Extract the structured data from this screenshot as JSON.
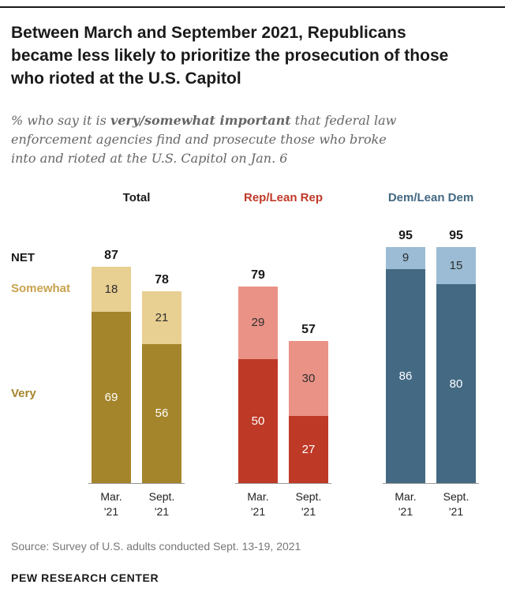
{
  "header": {
    "title": "Between March and September 2021, Republicans became less likely to prioritize the prosecution of those who rioted at the U.S. Capitol",
    "subtitle": {
      "pre": "% who say it is ",
      "bold": "very/somewhat important",
      "post": " that federal law enforcement agencies find and prosecute those who broke into and rioted at the U.S. Capitol on Jan. 6"
    }
  },
  "row_labels": {
    "net": "NET",
    "somewhat": "Somewhat",
    "very": "Very"
  },
  "chart_data": {
    "type": "bar",
    "stacked": true,
    "grid": false,
    "ylim": [
      0,
      100
    ],
    "categories": [
      "Mar. '21",
      "Sept. '21"
    ],
    "legend": [
      "NET",
      "Somewhat",
      "Very"
    ],
    "groups": [
      {
        "label": "Total",
        "header_color": "#1a1a1a",
        "colors": {
          "very": "#A5852B",
          "somewhat": "#E8CF92"
        },
        "bars": [
          {
            "x1": "Mar.",
            "x2": "'21",
            "net": 87,
            "somewhat": 18,
            "very": 69
          },
          {
            "x1": "Sept.",
            "x2": "'21",
            "net": 78,
            "somewhat": 21,
            "very": 56
          }
        ]
      },
      {
        "label": "Rep/Lean Rep",
        "header_color": "#BF3927",
        "colors": {
          "very": "#BF3927",
          "somewhat": "#EA9286"
        },
        "bars": [
          {
            "x1": "Mar.",
            "x2": "'21",
            "net": 79,
            "somewhat": 29,
            "very": 50
          },
          {
            "x1": "Sept.",
            "x2": "'21",
            "net": 57,
            "somewhat": 30,
            "very": 27
          }
        ]
      },
      {
        "label": "Dem/Lean Dem",
        "header_color": "#436983",
        "colors": {
          "very": "#436983",
          "somewhat": "#9BBCD4"
        },
        "bars": [
          {
            "x1": "Mar.",
            "x2": "'21",
            "net": 95,
            "somewhat": 9,
            "very": 86
          },
          {
            "x1": "Sept.",
            "x2": "'21",
            "net": 95,
            "somewhat": 15,
            "very": 80
          }
        ]
      }
    ]
  },
  "footer": {
    "source": "Source: Survey of U.S. adults conducted Sept. 13-19, 2021",
    "brand": "PEW RESEARCH CENTER"
  }
}
